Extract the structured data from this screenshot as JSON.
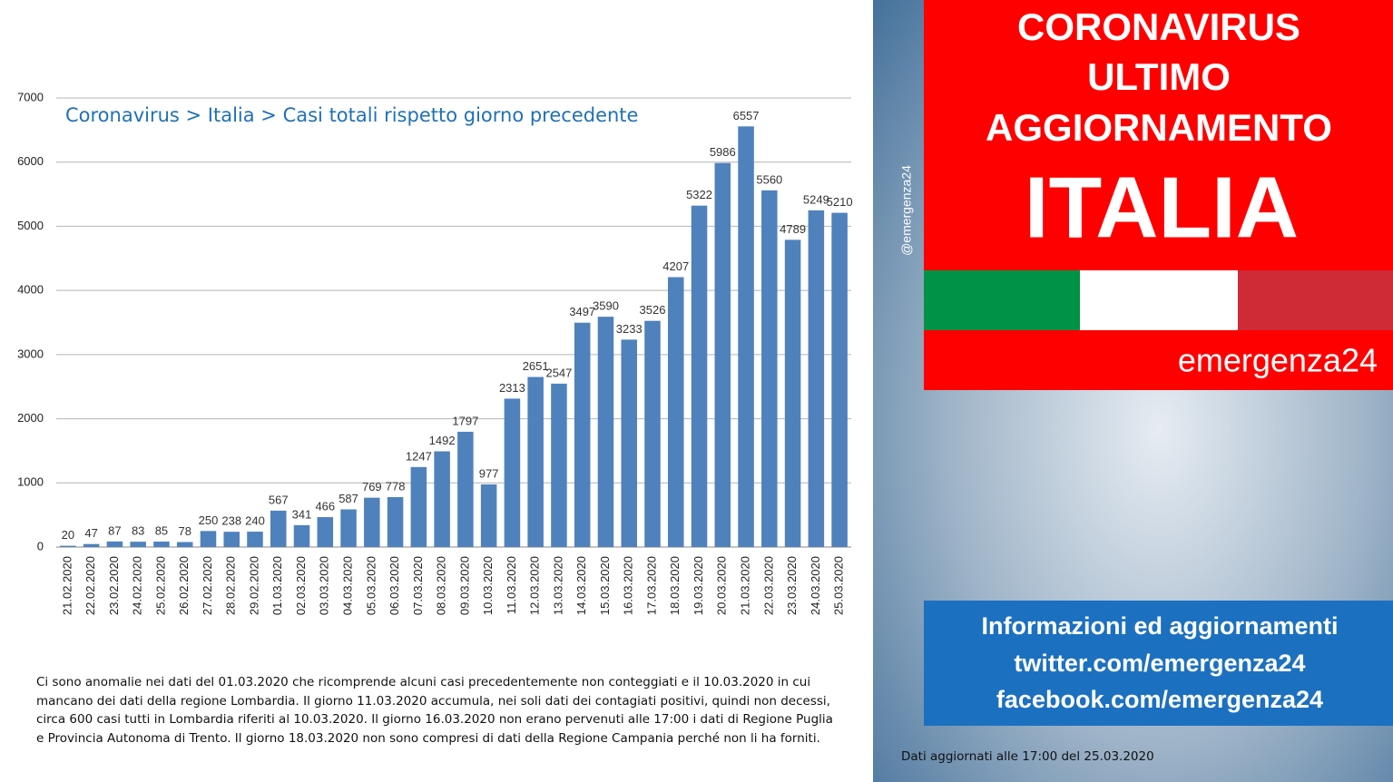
{
  "chart_data": {
    "type": "bar",
    "title": "Coronavirus > Italia > Casi totali rispetto giorno precedente",
    "categories": [
      "21.02.2020",
      "22.02.2020",
      "23.02.2020",
      "24.02.2020",
      "25.02.2020",
      "26.02.2020",
      "27.02.2020",
      "28.02.2020",
      "29.02.2020",
      "01.03.2020",
      "02.03.2020",
      "03.03.2020",
      "04.03.2020",
      "05.03.2020",
      "06.03.2020",
      "07.03.2020",
      "08.03.2020",
      "09.03.2020",
      "10.03.2020",
      "11.03.2020",
      "12.03.2020",
      "13.03.2020",
      "14.03.2020",
      "15.03.2020",
      "16.03.2020",
      "17.03.2020",
      "18.03.2020",
      "19.03.2020",
      "20.03.2020",
      "21.03.2020",
      "22.03.2020",
      "23.03.2020",
      "24.03.2020",
      "25.03.2020"
    ],
    "values": [
      20,
      47,
      87,
      83,
      85,
      78,
      250,
      238,
      240,
      567,
      341,
      466,
      587,
      769,
      778,
      1247,
      1492,
      1797,
      977,
      2313,
      2651,
      2547,
      3497,
      3590,
      3233,
      3526,
      4207,
      5322,
      5986,
      6557,
      5560,
      4789,
      5249,
      5210
    ],
    "color": "#4f81bd",
    "ylim": [
      0,
      7000
    ],
    "yticks": [
      0,
      1000,
      2000,
      3000,
      4000,
      5000,
      6000,
      7000
    ],
    "grid": true,
    "note": "Ci sono anomalie nei dati del 01.03.2020 che ricomprende alcuni casi precedentemente  non conteggiati e il 10.03.2020 in cui mancano dei dati della regione Lombardia. Il giorno 11.03.2020  accumula, nei soli dati dei contagiati positivi, quindi non decessi, circa 600 casi tutti in Lombardia riferiti al  10.03.2020. Il giorno 16.03.2020 non erano pervenuti alle 17:00 i dati di Regione Puglia e Provincia Autonoma di Trento. Il giorno 18.03.2020 non sono compresi di dati della Regione  Campania perché non li ha forniti."
  },
  "banner": {
    "line1": "CORONAVIRUS",
    "line2": "ULTIMO",
    "line3": "AGGIORNAMENTO",
    "country": "ITALIA",
    "brand": "emergenza24",
    "handle": "@emergenza24",
    "info": [
      "Informazioni ed aggiornamenti",
      "twitter.com/emergenza24",
      "facebook.com/emergenza24"
    ],
    "updated": "Dati aggiornati alle 17:00 del 25.03.2020"
  }
}
